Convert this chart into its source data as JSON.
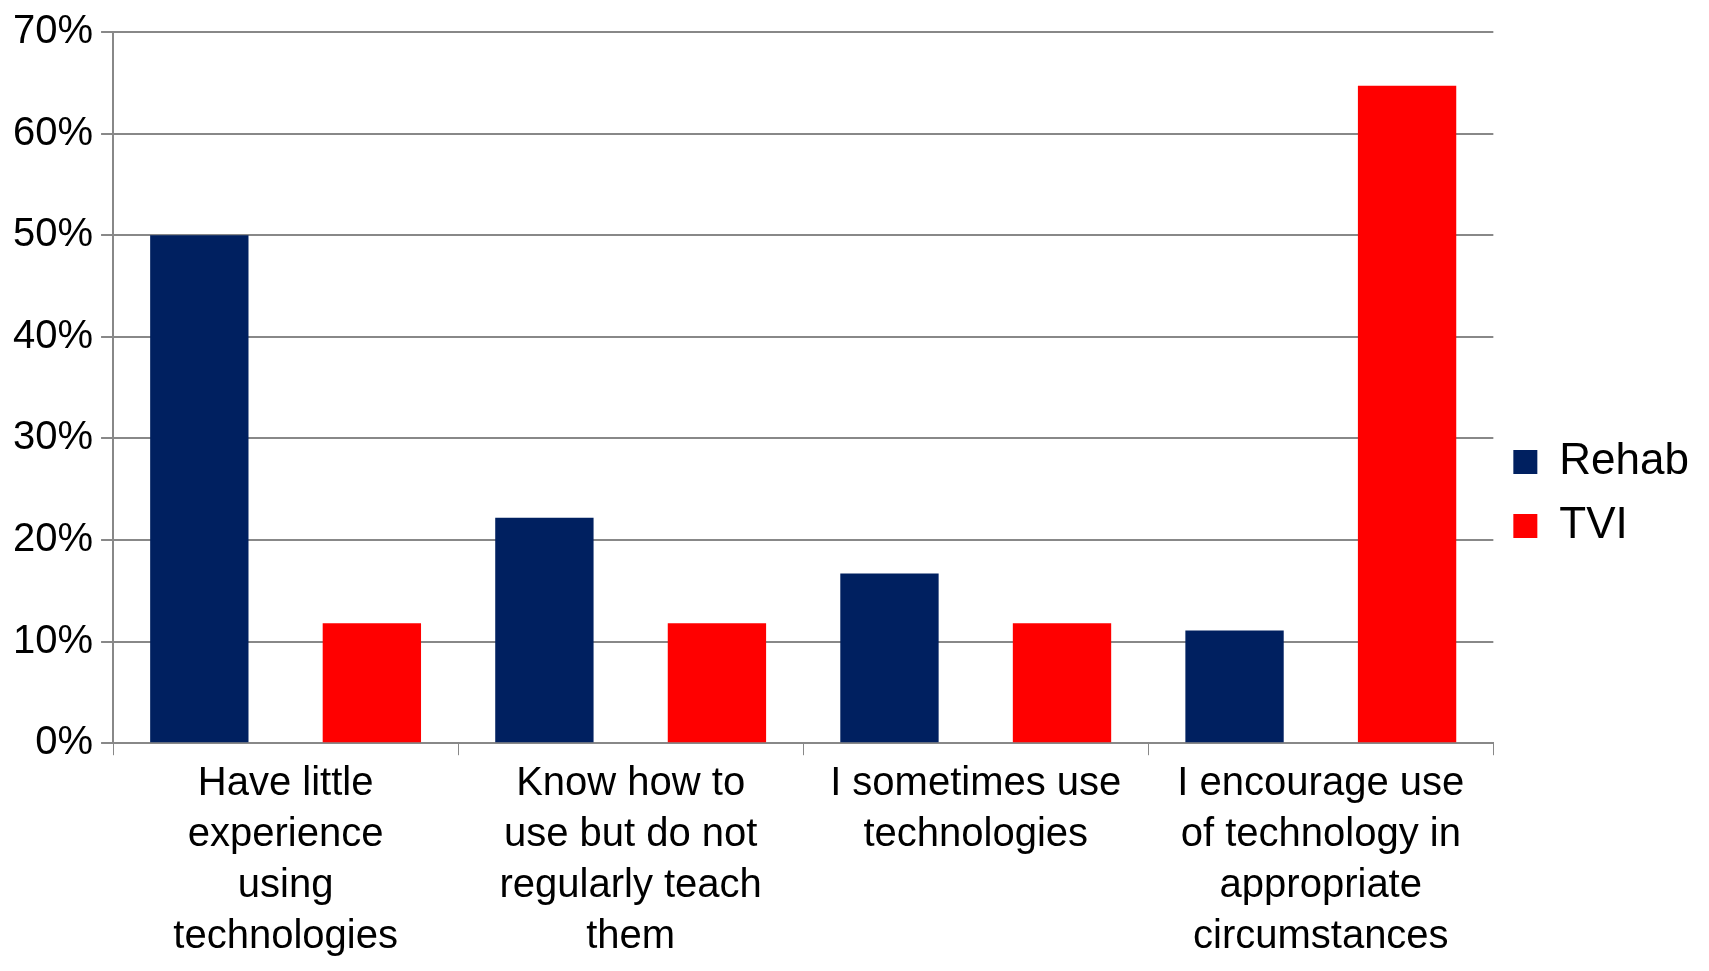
{
  "chart_data": {
    "type": "bar",
    "categories": [
      "Have little experience using technologies",
      "Know how to use but do not regularly teach them",
      "I sometimes use technologies",
      "I encourage use of technology in appropriate circumstances"
    ],
    "series": [
      {
        "name": "Rehab",
        "color": "#002060",
        "values": [
          50,
          22.2,
          16.7,
          11.1
        ]
      },
      {
        "name": "TVI",
        "color": "#ff0000",
        "values": [
          11.8,
          11.8,
          11.8,
          64.7
        ]
      }
    ],
    "ylim": [
      0,
      70
    ],
    "yticks": [
      {
        "value": 0,
        "label": "0%"
      },
      {
        "value": 10,
        "label": "10%"
      },
      {
        "value": 20,
        "label": "20%"
      },
      {
        "value": 30,
        "label": "30%"
      },
      {
        "value": 40,
        "label": "40%"
      },
      {
        "value": 50,
        "label": "50%"
      },
      {
        "value": 60,
        "label": "60%"
      },
      {
        "value": 70,
        "label": "70%"
      }
    ],
    "grid": "y",
    "legend": "right"
  }
}
